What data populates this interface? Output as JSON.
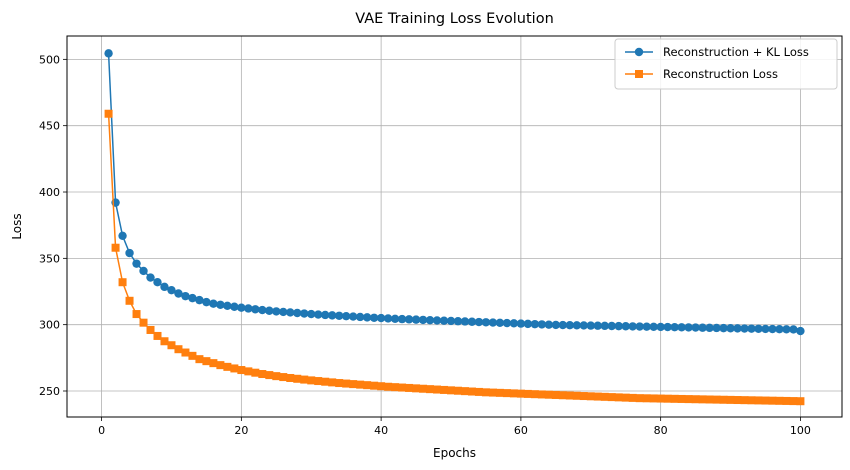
{
  "chart_data": {
    "type": "line",
    "title": "VAE Training Loss Evolution",
    "xlabel": "Epochs",
    "ylabel": "Loss",
    "xlim": [
      -4.95,
      105.95
    ],
    "ylim": [
      230.4,
      517.6
    ],
    "xticks": [
      0,
      20,
      40,
      60,
      80,
      100
    ],
    "yticks": [
      250,
      300,
      350,
      400,
      450,
      500
    ],
    "grid": true,
    "legend_position": "top-right",
    "x": [
      1,
      2,
      3,
      4,
      5,
      6,
      7,
      8,
      9,
      10,
      11,
      12,
      13,
      14,
      15,
      16,
      17,
      18,
      19,
      20,
      21,
      22,
      23,
      24,
      25,
      26,
      27,
      28,
      29,
      30,
      31,
      32,
      33,
      34,
      35,
      36,
      37,
      38,
      39,
      40,
      41,
      42,
      43,
      44,
      45,
      46,
      47,
      48,
      49,
      50,
      51,
      52,
      53,
      54,
      55,
      56,
      57,
      58,
      59,
      60,
      61,
      62,
      63,
      64,
      65,
      66,
      67,
      68,
      69,
      70,
      71,
      72,
      73,
      74,
      75,
      76,
      77,
      78,
      79,
      80,
      81,
      82,
      83,
      84,
      85,
      86,
      87,
      88,
      89,
      90,
      91,
      92,
      93,
      94,
      95,
      96,
      97,
      98,
      99,
      100
    ],
    "series": [
      {
        "name": "Reconstruction + KL Loss",
        "color": "#1f77b4",
        "marker": "circle",
        "values": [
          504.5,
          392.0,
          367.0,
          354.0,
          346.0,
          340.5,
          335.5,
          332.0,
          328.5,
          326.0,
          323.5,
          321.5,
          320.0,
          318.5,
          317.0,
          315.8,
          315.0,
          314.2,
          313.5,
          312.8,
          312.2,
          311.6,
          311.0,
          310.5,
          310.0,
          309.6,
          309.2,
          308.8,
          308.4,
          308.0,
          307.6,
          307.3,
          307.0,
          306.7,
          306.4,
          306.1,
          305.8,
          305.5,
          305.2,
          305.0,
          304.7,
          304.4,
          304.2,
          304.0,
          303.8,
          303.6,
          303.4,
          303.2,
          303.0,
          302.8,
          302.6,
          302.4,
          302.2,
          302.0,
          301.8,
          301.6,
          301.4,
          301.2,
          301.0,
          300.8,
          300.6,
          300.4,
          300.2,
          300.0,
          299.8,
          299.7,
          299.6,
          299.5,
          299.4,
          299.3,
          299.2,
          299.1,
          299.0,
          298.9,
          298.8,
          298.7,
          298.6,
          298.5,
          298.4,
          298.3,
          298.2,
          298.1,
          298.0,
          297.9,
          297.8,
          297.7,
          297.6,
          297.5,
          297.4,
          297.3,
          297.2,
          297.1,
          297.0,
          296.9,
          296.8,
          296.7,
          296.6,
          296.5,
          296.4,
          295.2
        ]
      },
      {
        "name": "Reconstruction Loss",
        "color": "#ff7f0e",
        "marker": "square",
        "values": [
          459.0,
          358.0,
          332.0,
          318.0,
          308.0,
          301.5,
          296.0,
          291.5,
          287.5,
          284.5,
          281.5,
          279.0,
          276.5,
          274.0,
          272.5,
          271.0,
          269.5,
          268.2,
          267.0,
          265.8,
          264.8,
          263.8,
          262.8,
          262.0,
          261.2,
          260.5,
          259.8,
          259.2,
          258.6,
          258.0,
          257.5,
          257.0,
          256.5,
          256.0,
          255.6,
          255.2,
          254.8,
          254.4,
          254.0,
          253.6,
          253.2,
          252.9,
          252.6,
          252.3,
          252.0,
          251.7,
          251.4,
          251.1,
          250.8,
          250.5,
          250.2,
          249.9,
          249.6,
          249.3,
          249.0,
          248.8,
          248.6,
          248.4,
          248.2,
          248.0,
          247.8,
          247.6,
          247.4,
          247.2,
          247.0,
          246.8,
          246.6,
          246.4,
          246.2,
          246.0,
          245.8,
          245.6,
          245.4,
          245.2,
          245.0,
          244.8,
          244.6,
          244.5,
          244.4,
          244.3,
          244.2,
          244.1,
          244.0,
          243.9,
          243.8,
          243.7,
          243.6,
          243.5,
          243.4,
          243.3,
          243.2,
          243.1,
          243.0,
          242.9,
          242.8,
          242.7,
          242.6,
          242.5,
          242.4,
          242.3
        ]
      }
    ]
  }
}
